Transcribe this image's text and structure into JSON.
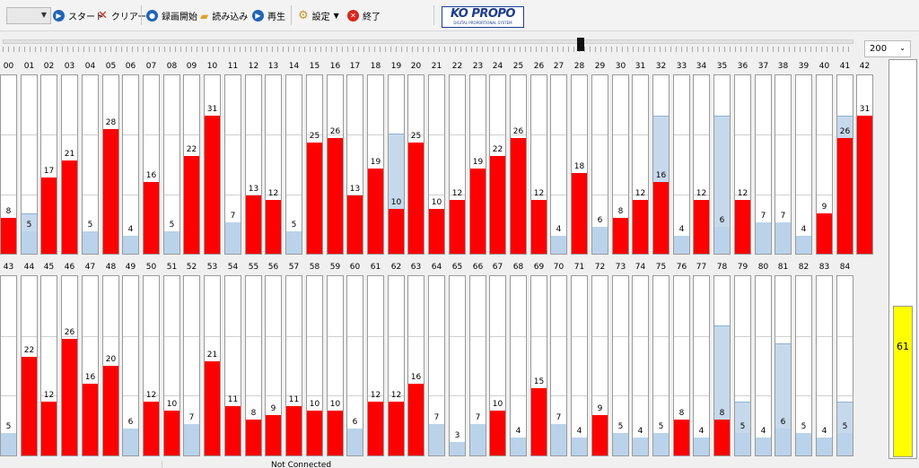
{
  "toolbar": {
    "combo_value": "",
    "start_label": "スタート",
    "clear_label": "クリアー",
    "record_label": "録画開始",
    "load_label": "読み込み",
    "play_label": "再生",
    "settings_label": "設定",
    "exit_label": "終了"
  },
  "logo": {
    "title": "KO PROPO",
    "subtitle": "DIGITAL PROPORTIONAL SYSTEM"
  },
  "range_select": {
    "value": "200",
    "max": 40
  },
  "meter": {
    "value": "61",
    "level": 61
  },
  "status": {
    "text": "Not Connected"
  },
  "colors": {
    "red": "#ff0000",
    "blue": "#bad3ea",
    "meter": "#ffff00"
  },
  "row1": [
    {
      "label": "00",
      "value": 8,
      "bg": null
    },
    {
      "label": "01",
      "value": 5,
      "bg": 9
    },
    {
      "label": "02",
      "value": 17,
      "bg": null
    },
    {
      "label": "03",
      "value": 21,
      "bg": null
    },
    {
      "label": "04",
      "value": 5,
      "bg": null
    },
    {
      "label": "05",
      "value": 28,
      "bg": null
    },
    {
      "label": "06",
      "value": 4,
      "bg": null
    },
    {
      "label": "07",
      "value": 16,
      "bg": null
    },
    {
      "label": "08",
      "value": 5,
      "bg": null
    },
    {
      "label": "09",
      "value": 22,
      "bg": null
    },
    {
      "label": "10",
      "value": 31,
      "bg": null
    },
    {
      "label": "11",
      "value": 7,
      "bg": null
    },
    {
      "label": "12",
      "value": 13,
      "bg": null
    },
    {
      "label": "13",
      "value": 12,
      "bg": null
    },
    {
      "label": "14",
      "value": 5,
      "bg": null
    },
    {
      "label": "15",
      "value": 25,
      "bg": null
    },
    {
      "label": "16",
      "value": 26,
      "bg": null
    },
    {
      "label": "17",
      "value": 13,
      "bg": null
    },
    {
      "label": "18",
      "value": 19,
      "bg": null
    },
    {
      "label": "19",
      "value": 10,
      "bg": 27
    },
    {
      "label": "20",
      "value": 25,
      "bg": null
    },
    {
      "label": "21",
      "value": 10,
      "bg": null
    },
    {
      "label": "22",
      "value": 12,
      "bg": null
    },
    {
      "label": "23",
      "value": 19,
      "bg": null
    },
    {
      "label": "24",
      "value": 22,
      "bg": null
    },
    {
      "label": "25",
      "value": 26,
      "bg": null
    },
    {
      "label": "26",
      "value": 12,
      "bg": null
    },
    {
      "label": "27",
      "value": 4,
      "bg": null
    },
    {
      "label": "28",
      "value": 18,
      "bg": null
    },
    {
      "label": "29",
      "value": 6,
      "bg": null
    },
    {
      "label": "30",
      "value": 8,
      "bg": null
    },
    {
      "label": "31",
      "value": 12,
      "bg": null
    },
    {
      "label": "32",
      "value": 16,
      "bg": 31
    },
    {
      "label": "33",
      "value": 4,
      "bg": null
    },
    {
      "label": "34",
      "value": 12,
      "bg": null
    },
    {
      "label": "35",
      "value": 6,
      "bg": 31
    },
    {
      "label": "36",
      "value": 12,
      "bg": null
    },
    {
      "label": "37",
      "value": 7,
      "bg": null
    },
    {
      "label": "38",
      "value": 7,
      "bg": null
    },
    {
      "label": "39",
      "value": 4,
      "bg": null
    },
    {
      "label": "40",
      "value": 9,
      "bg": null
    },
    {
      "label": "41",
      "value": 26,
      "bg": 31
    },
    {
      "label": "42",
      "value": 31,
      "bg": null
    }
  ],
  "row2": [
    {
      "label": "43",
      "value": 5,
      "bg": null
    },
    {
      "label": "44",
      "value": 22,
      "bg": null
    },
    {
      "label": "45",
      "value": 12,
      "bg": null
    },
    {
      "label": "46",
      "value": 26,
      "bg": null
    },
    {
      "label": "47",
      "value": 16,
      "bg": null
    },
    {
      "label": "48",
      "value": 20,
      "bg": null
    },
    {
      "label": "49",
      "value": 6,
      "bg": null
    },
    {
      "label": "50",
      "value": 12,
      "bg": null
    },
    {
      "label": "51",
      "value": 10,
      "bg": null
    },
    {
      "label": "52",
      "value": 7,
      "bg": null
    },
    {
      "label": "53",
      "value": 21,
      "bg": null
    },
    {
      "label": "54",
      "value": 11,
      "bg": null
    },
    {
      "label": "55",
      "value": 8,
      "bg": null
    },
    {
      "label": "56",
      "value": 9,
      "bg": null
    },
    {
      "label": "57",
      "value": 11,
      "bg": null
    },
    {
      "label": "58",
      "value": 10,
      "bg": null
    },
    {
      "label": "59",
      "value": 10,
      "bg": null
    },
    {
      "label": "60",
      "value": 6,
      "bg": null
    },
    {
      "label": "61",
      "value": 12,
      "bg": null
    },
    {
      "label": "62",
      "value": 12,
      "bg": null
    },
    {
      "label": "63",
      "value": 16,
      "bg": null
    },
    {
      "label": "64",
      "value": 7,
      "bg": null
    },
    {
      "label": "65",
      "value": 3,
      "bg": null
    },
    {
      "label": "66",
      "value": 7,
      "bg": null
    },
    {
      "label": "67",
      "value": 10,
      "bg": null
    },
    {
      "label": "68",
      "value": 4,
      "bg": null
    },
    {
      "label": "69",
      "value": 15,
      "bg": null
    },
    {
      "label": "70",
      "value": 7,
      "bg": null
    },
    {
      "label": "71",
      "value": 4,
      "bg": null
    },
    {
      "label": "72",
      "value": 9,
      "bg": null
    },
    {
      "label": "73",
      "value": 5,
      "bg": null
    },
    {
      "label": "74",
      "value": 4,
      "bg": null
    },
    {
      "label": "75",
      "value": 5,
      "bg": null
    },
    {
      "label": "76",
      "value": 8,
      "bg": null
    },
    {
      "label": "77",
      "value": 4,
      "bg": null
    },
    {
      "label": "78",
      "value": 8,
      "bg": 29
    },
    {
      "label": "79",
      "value": 5,
      "bg": 12
    },
    {
      "label": "80",
      "value": 4,
      "bg": null
    },
    {
      "label": "81",
      "value": 6,
      "bg": 25
    },
    {
      "label": "82",
      "value": 5,
      "bg": null
    },
    {
      "label": "83",
      "value": 4,
      "bg": null
    },
    {
      "label": "84",
      "value": 5,
      "bg": 12
    }
  ]
}
